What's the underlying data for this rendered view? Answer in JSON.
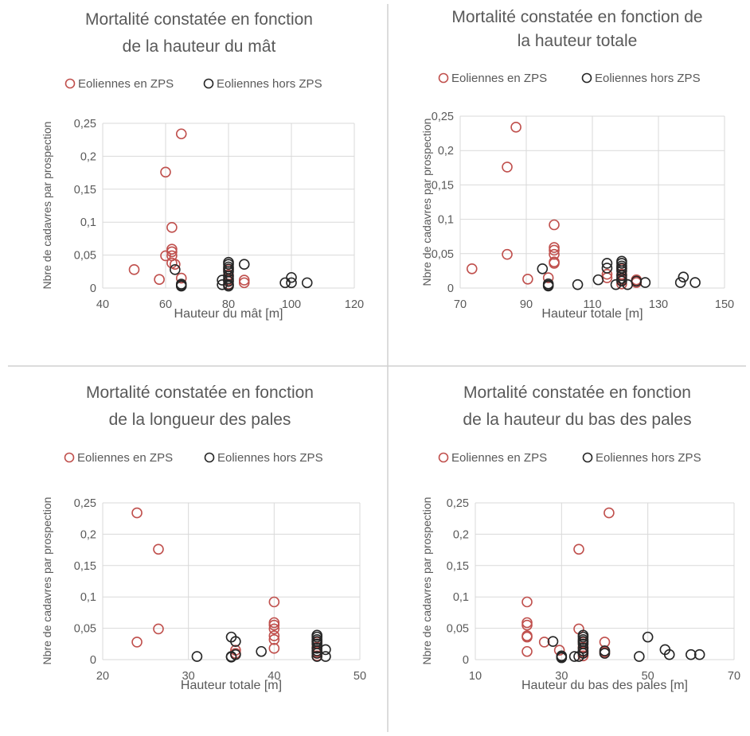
{
  "colors": {
    "in_zps": "#c0504d",
    "out_zps": "#262626",
    "grid": "#d9d9d9",
    "text": "#595959"
  },
  "chart_data": [
    {
      "type": "scatter",
      "title": "Mortalité constatée en fonction",
      "subtitle": "de la hauteur du mât",
      "xlabel": "Hauteur du mât [m]",
      "ylabel": "Nbre de cadavres par prospection",
      "xlim": [
        40,
        120
      ],
      "ylim": [
        0,
        0.25
      ],
      "xticks": [
        "40",
        "60",
        "80",
        "100",
        "120"
      ],
      "yticks": [
        "0",
        "0,05",
        "0,1",
        "0,15",
        "0,2",
        "0,25"
      ],
      "grid": true,
      "legend": "top",
      "series": [
        {
          "name": "Eoliennes en ZPS",
          "color": "#c0504d",
          "points": [
            [
              50,
              0.028
            ],
            [
              58,
              0.013
            ],
            [
              60,
              0.049
            ],
            [
              60,
              0.176
            ],
            [
              62,
              0.092
            ],
            [
              62,
              0.059
            ],
            [
              62,
              0.055
            ],
            [
              62,
              0.049
            ],
            [
              62,
              0.038
            ],
            [
              63,
              0.036
            ],
            [
              65,
              0.234
            ],
            [
              65,
              0.015
            ],
            [
              80,
              0.028
            ],
            [
              80,
              0.02
            ],
            [
              80,
              0.012
            ],
            [
              80,
              0.006
            ],
            [
              85,
              0.012
            ],
            [
              85,
              0.008
            ]
          ]
        },
        {
          "name": "Eoliennes hors ZPS",
          "color": "#262626",
          "points": [
            [
              63,
              0.028
            ],
            [
              65,
              0.006
            ],
            [
              65,
              0.004
            ],
            [
              65,
              0.003
            ],
            [
              78,
              0.012
            ],
            [
              78,
              0.005
            ],
            [
              80,
              0.039
            ],
            [
              80,
              0.036
            ],
            [
              80,
              0.032
            ],
            [
              80,
              0.029
            ],
            [
              80,
              0.025
            ],
            [
              80,
              0.018
            ],
            [
              80,
              0.014
            ],
            [
              80,
              0.01
            ],
            [
              80,
              0.005
            ],
            [
              80,
              0.003
            ],
            [
              85,
              0.036
            ],
            [
              98,
              0.008
            ],
            [
              100,
              0.016
            ],
            [
              100,
              0.008
            ],
            [
              105,
              0.008
            ]
          ]
        }
      ]
    },
    {
      "type": "scatter",
      "title": "Mortalité constatée en fonction de",
      "subtitle": "la hauteur totale",
      "xlabel": "Hauteur totale [m]",
      "ylabel": "Nbre de cadavres par prospection",
      "xlim": [
        70,
        160
      ],
      "ylim": [
        0,
        0.25
      ],
      "xticks": [
        "70",
        "90",
        "110",
        "130",
        "150"
      ],
      "yticks": [
        "0",
        "0,05",
        "0,1",
        "0,15",
        "0,2",
        "0,25"
      ],
      "grid": true,
      "legend": "top",
      "series": [
        {
          "name": "Eoliennes en ZPS",
          "color": "#c0504d",
          "points": [
            [
              74,
              0.028
            ],
            [
              86,
              0.176
            ],
            [
              86,
              0.049
            ],
            [
              89,
              0.234
            ],
            [
              93,
              0.013
            ],
            [
              100,
              0.015
            ],
            [
              102,
              0.092
            ],
            [
              102,
              0.059
            ],
            [
              102,
              0.055
            ],
            [
              102,
              0.049
            ],
            [
              102,
              0.038
            ],
            [
              102,
              0.036
            ],
            [
              120,
              0.02
            ],
            [
              120,
              0.015
            ],
            [
              125,
              0.028
            ],
            [
              125,
              0.02
            ],
            [
              125,
              0.012
            ],
            [
              125,
              0.006
            ],
            [
              130,
              0.012
            ],
            [
              130,
              0.008
            ]
          ]
        },
        {
          "name": "Eoliennes hors ZPS",
          "color": "#262626",
          "points": [
            [
              98,
              0.028
            ],
            [
              100,
              0.006
            ],
            [
              100,
              0.004
            ],
            [
              100,
              0.003
            ],
            [
              110,
              0.005
            ],
            [
              117,
              0.012
            ],
            [
              120,
              0.036
            ],
            [
              120,
              0.029
            ],
            [
              123,
              0.005
            ],
            [
              125,
              0.039
            ],
            [
              125,
              0.036
            ],
            [
              125,
              0.032
            ],
            [
              125,
              0.029
            ],
            [
              125,
              0.025
            ],
            [
              125,
              0.018
            ],
            [
              125,
              0.014
            ],
            [
              125,
              0.01
            ],
            [
              127,
              0.005
            ],
            [
              130,
              0.01
            ],
            [
              133,
              0.008
            ],
            [
              145,
              0.008
            ],
            [
              146,
              0.016
            ],
            [
              150,
              0.008
            ]
          ]
        }
      ]
    },
    {
      "type": "scatter",
      "title": "Mortalité constatée en fonction",
      "subtitle": "de la longueur des pales",
      "xlabel": "Hauteur totale [m]",
      "ylabel": "Nbre de cadavres par prospection",
      "xlim": [
        20,
        50
      ],
      "ylim": [
        0,
        0.25
      ],
      "xticks": [
        "20",
        "30",
        "40",
        "50"
      ],
      "yticks": [
        "0",
        "0,05",
        "0,1",
        "0,15",
        "0,2",
        "0,25"
      ],
      "grid": true,
      "legend": "top",
      "series": [
        {
          "name": "Eoliennes en ZPS",
          "color": "#c0504d",
          "points": [
            [
              24,
              0.234
            ],
            [
              24,
              0.028
            ],
            [
              26.5,
              0.176
            ],
            [
              26.5,
              0.049
            ],
            [
              35.5,
              0.015
            ],
            [
              35.5,
              0.01
            ],
            [
              40,
              0.092
            ],
            [
              40,
              0.059
            ],
            [
              40,
              0.055
            ],
            [
              40,
              0.049
            ],
            [
              40,
              0.038
            ],
            [
              40,
              0.032
            ],
            [
              40,
              0.018
            ],
            [
              45,
              0.028
            ],
            [
              45,
              0.02
            ],
            [
              45,
              0.012
            ],
            [
              45,
              0.006
            ]
          ]
        },
        {
          "name": "Eoliennes hors ZPS",
          "color": "#262626",
          "points": [
            [
              31,
              0.005
            ],
            [
              35,
              0.036
            ],
            [
              35,
              0.005
            ],
            [
              35,
              0.004
            ],
            [
              35.5,
              0.029
            ],
            [
              35.5,
              0.008
            ],
            [
              38.5,
              0.013
            ],
            [
              45,
              0.039
            ],
            [
              45,
              0.036
            ],
            [
              45,
              0.032
            ],
            [
              45,
              0.029
            ],
            [
              45,
              0.025
            ],
            [
              45,
              0.018
            ],
            [
              45,
              0.014
            ],
            [
              45,
              0.01
            ],
            [
              45,
              0.005
            ],
            [
              46,
              0.016
            ],
            [
              46,
              0.005
            ]
          ]
        }
      ]
    },
    {
      "type": "scatter",
      "title": "Mortalité constatée en fonction",
      "subtitle": "de la hauteur du bas des pales",
      "xlabel": "Hauteur du bas des pales [m]",
      "ylabel": "Nbre de cadavres par prospection",
      "xlim": [
        10,
        70
      ],
      "ylim": [
        0,
        0.25
      ],
      "xticks": [
        "10",
        "30",
        "50",
        "70"
      ],
      "yticks": [
        "0",
        "0,05",
        "0,1",
        "0,15",
        "0,2",
        "0,25"
      ],
      "grid": true,
      "legend": "top",
      "series": [
        {
          "name": "Eoliennes en ZPS",
          "color": "#c0504d",
          "points": [
            [
              22,
              0.092
            ],
            [
              22,
              0.059
            ],
            [
              22,
              0.055
            ],
            [
              22,
              0.038
            ],
            [
              22,
              0.036
            ],
            [
              22,
              0.013
            ],
            [
              26,
              0.028
            ],
            [
              29.5,
              0.015
            ],
            [
              34,
              0.176
            ],
            [
              34,
              0.049
            ],
            [
              35,
              0.028
            ],
            [
              35,
              0.02
            ],
            [
              35,
              0.012
            ],
            [
              35,
              0.006
            ],
            [
              40,
              0.028
            ],
            [
              40,
              0.012
            ],
            [
              41,
              0.234
            ]
          ]
        },
        {
          "name": "Eoliennes hors ZPS",
          "color": "#262626",
          "points": [
            [
              28,
              0.029
            ],
            [
              30,
              0.006
            ],
            [
              30,
              0.004
            ],
            [
              30,
              0.003
            ],
            [
              33,
              0.005
            ],
            [
              34,
              0.005
            ],
            [
              35,
              0.039
            ],
            [
              35,
              0.036
            ],
            [
              35,
              0.032
            ],
            [
              35,
              0.029
            ],
            [
              35,
              0.025
            ],
            [
              35,
              0.018
            ],
            [
              35,
              0.014
            ],
            [
              35,
              0.01
            ],
            [
              40,
              0.014
            ],
            [
              40,
              0.01
            ],
            [
              48,
              0.005
            ],
            [
              50,
              0.036
            ],
            [
              54,
              0.016
            ],
            [
              55,
              0.008
            ],
            [
              60,
              0.008
            ],
            [
              62,
              0.008
            ]
          ]
        }
      ]
    }
  ]
}
